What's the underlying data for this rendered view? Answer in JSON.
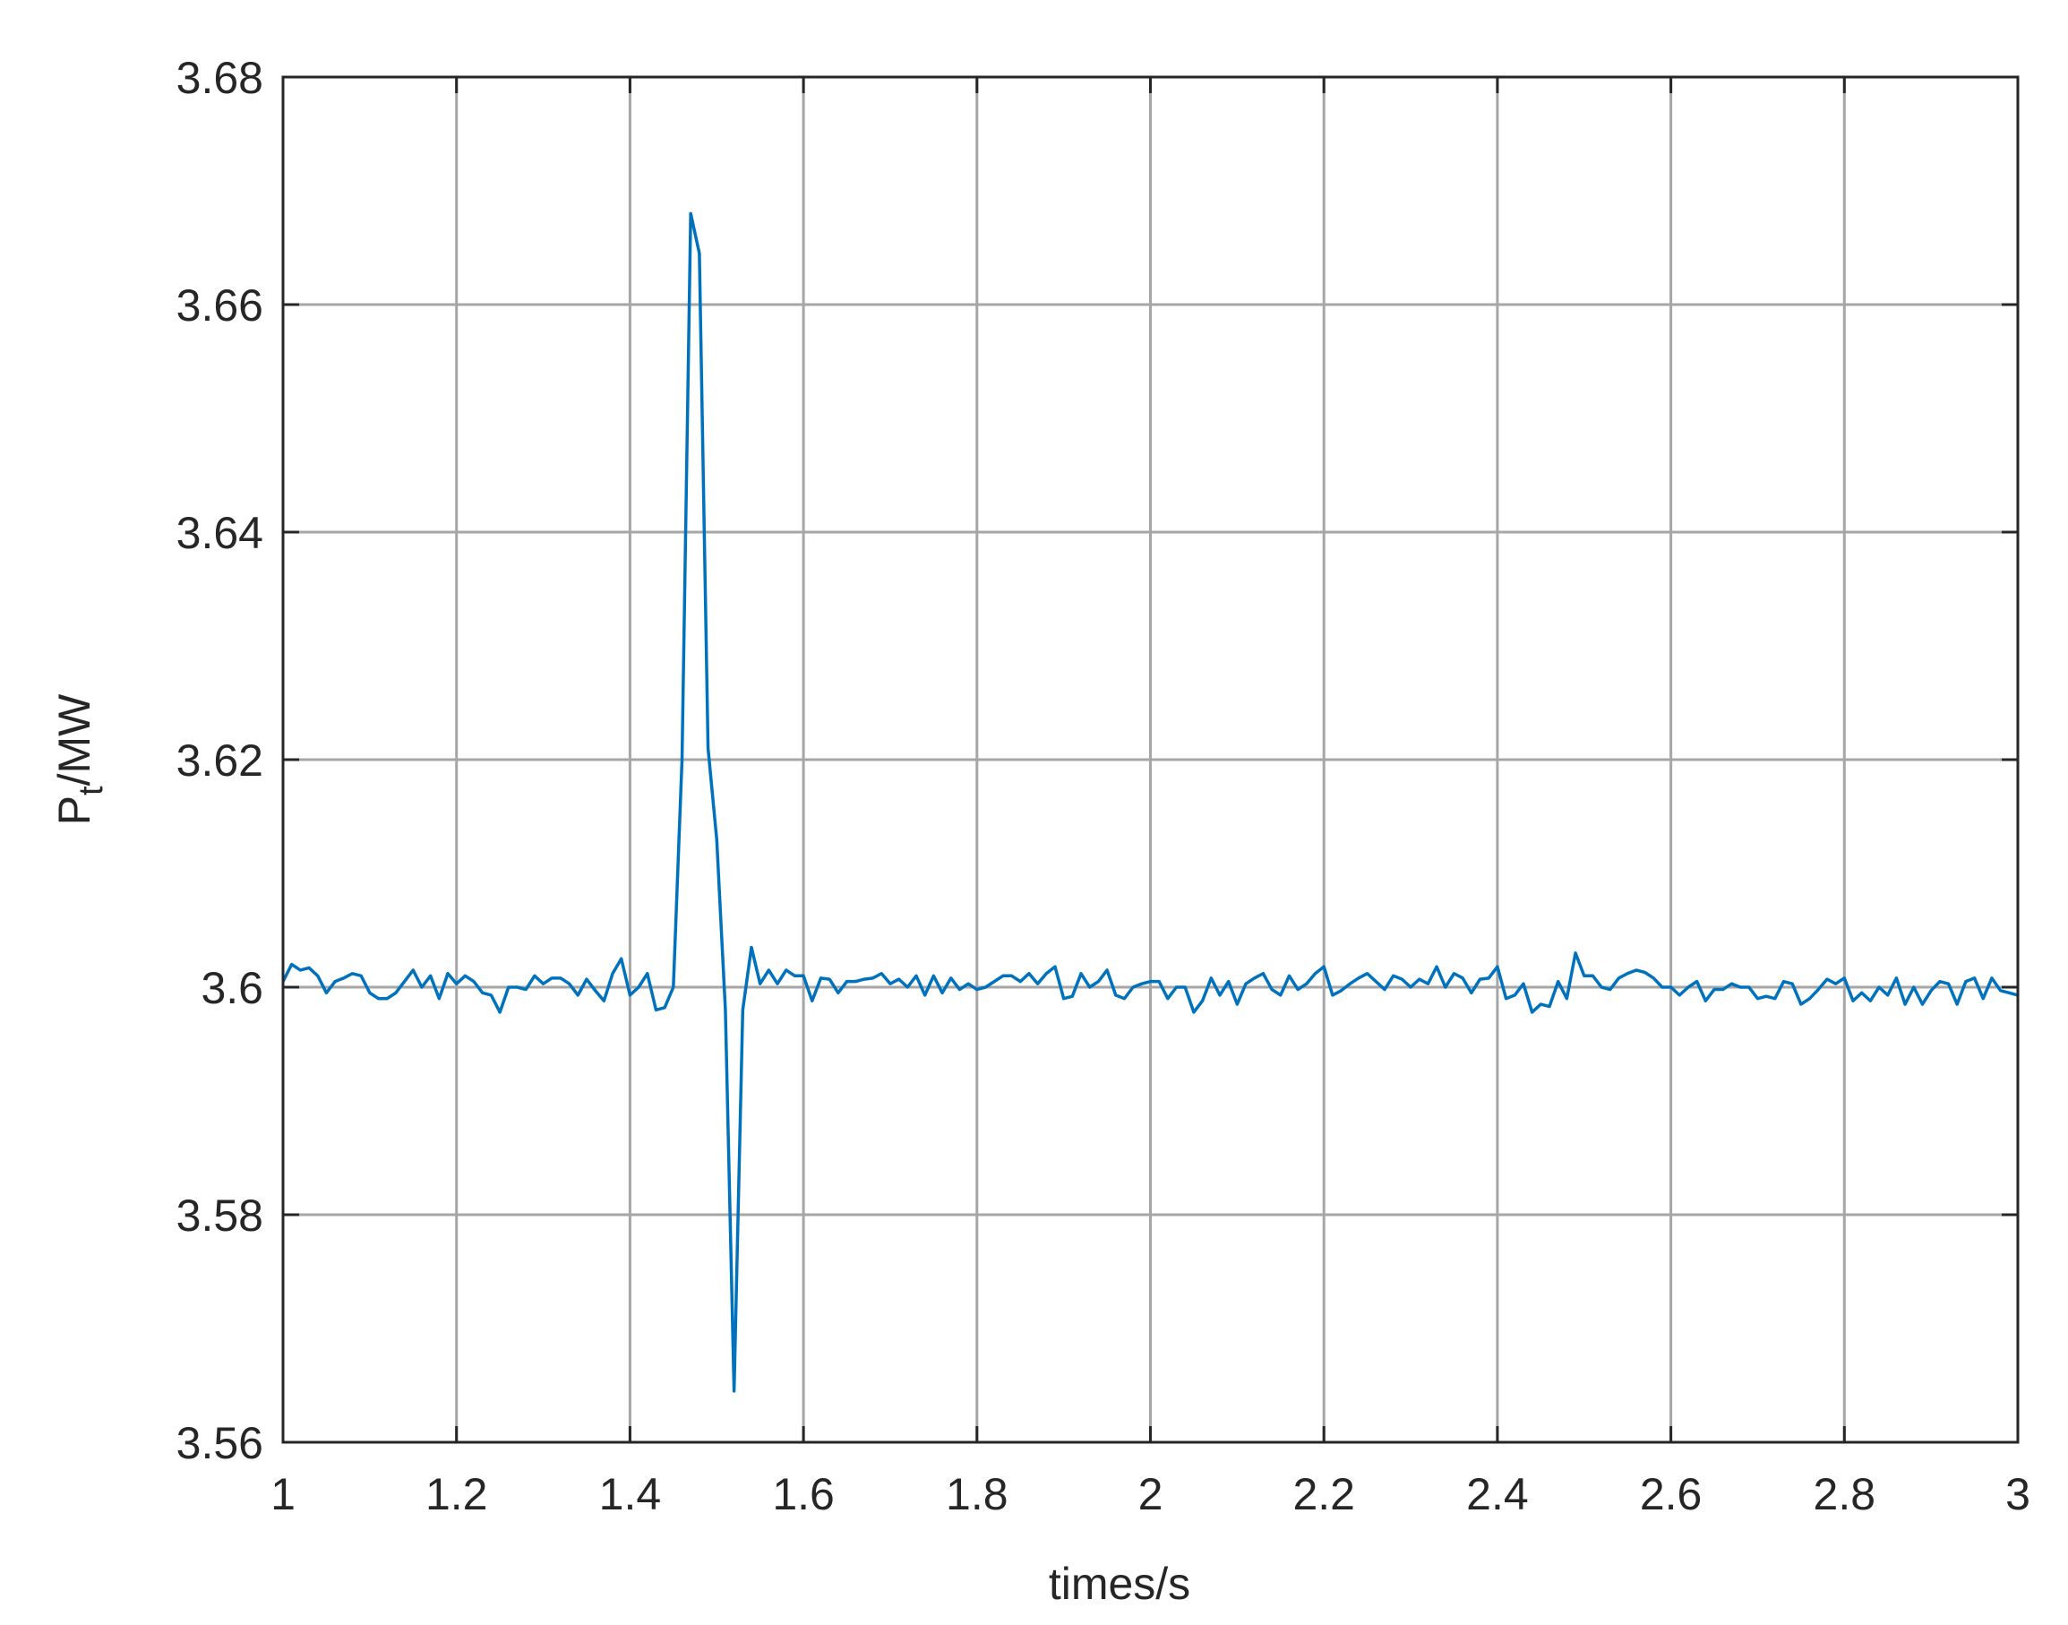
{
  "chart_data": {
    "type": "line",
    "xlabel": "times/s",
    "ylabel": [
      "P",
      "t",
      "/MW"
    ],
    "x": [
      1,
      1.01,
      1.02,
      1.03,
      1.04,
      1.05,
      1.06,
      1.07,
      1.08,
      1.09,
      1.1,
      1.11,
      1.12,
      1.13,
      1.14,
      1.15,
      1.16,
      1.17,
      1.18,
      1.19,
      1.2,
      1.21,
      1.22,
      1.23,
      1.24,
      1.25,
      1.26,
      1.27,
      1.28,
      1.29,
      1.3,
      1.31,
      1.32,
      1.33,
      1.34,
      1.35,
      1.36,
      1.37,
      1.38,
      1.39,
      1.4,
      1.41,
      1.42,
      1.43,
      1.44,
      1.45,
      1.46,
      1.47,
      1.48,
      1.49,
      1.5,
      1.51,
      1.52,
      1.53,
      1.54,
      1.55,
      1.56,
      1.57,
      1.58,
      1.59,
      1.6,
      1.61,
      1.62,
      1.63,
      1.64,
      1.65,
      1.66,
      1.67,
      1.68,
      1.69,
      1.7,
      1.71,
      1.72,
      1.73,
      1.74,
      1.75,
      1.76,
      1.77,
      1.78,
      1.79,
      1.8,
      1.81,
      1.82,
      1.83,
      1.84,
      1.85,
      1.86,
      1.87,
      1.88,
      1.89,
      1.9,
      1.91,
      1.92,
      1.93,
      1.94,
      1.95,
      1.96,
      1.97,
      1.98,
      1.99,
      2,
      2.01,
      2.02,
      2.03,
      2.04,
      2.05,
      2.06,
      2.07,
      2.08,
      2.09,
      2.1,
      2.11,
      2.12,
      2.13,
      2.14,
      2.15,
      2.16,
      2.17,
      2.18,
      2.19,
      2.2,
      2.21,
      2.22,
      2.23,
      2.24,
      2.25,
      2.26,
      2.27,
      2.28,
      2.29,
      2.3,
      2.31,
      2.32,
      2.33,
      2.34,
      2.35,
      2.36,
      2.37,
      2.38,
      2.39,
      2.4,
      2.41,
      2.42,
      2.43,
      2.44,
      2.45,
      2.46,
      2.47,
      2.48,
      2.49,
      2.5,
      2.51,
      2.52,
      2.53,
      2.54,
      2.55,
      2.56,
      2.57,
      2.58,
      2.59,
      2.6,
      2.61,
      2.62,
      2.63,
      2.64,
      2.65,
      2.66,
      2.67,
      2.68,
      2.69,
      2.7,
      2.71,
      2.72,
      2.73,
      2.74,
      2.75,
      2.76,
      2.77,
      2.78,
      2.79,
      2.8,
      2.81,
      2.82,
      2.83,
      2.84,
      2.85,
      2.86,
      2.87,
      2.88,
      2.89,
      2.9,
      2.91,
      2.92,
      2.93,
      2.94,
      2.95,
      2.96,
      2.97,
      2.98,
      2.99,
      3
    ],
    "series": [
      {
        "color": "#0072bd",
        "values": [
          3.6005,
          3.602,
          3.6015,
          3.6017,
          3.601,
          3.5995,
          3.6005,
          3.6008,
          3.6012,
          3.601,
          3.5995,
          3.599,
          3.599,
          3.5995,
          3.6005,
          3.6015,
          3.6,
          3.601,
          3.599,
          3.6012,
          3.6003,
          3.601,
          3.6005,
          3.5995,
          3.5993,
          3.5978,
          3.6,
          3.6,
          3.5998,
          3.601,
          3.6003,
          3.6008,
          3.6008,
          3.6003,
          3.5993,
          3.6007,
          3.5997,
          3.5988,
          3.6012,
          3.6025,
          3.5993,
          3.6,
          3.6012,
          3.598,
          3.5982,
          3.6,
          3.62,
          3.668,
          3.6645,
          3.621,
          3.613,
          3.598,
          3.5645,
          3.598,
          3.6035,
          3.6003,
          3.6015,
          3.6003,
          3.6015,
          3.601,
          3.601,
          3.5988,
          3.6008,
          3.6007,
          3.5995,
          3.6005,
          3.6005,
          3.6007,
          3.6008,
          3.6012,
          3.6003,
          3.6007,
          3.6,
          3.601,
          3.5993,
          3.601,
          3.5995,
          3.6008,
          3.5998,
          3.6003,
          3.5998,
          3.6,
          3.6005,
          3.601,
          3.601,
          3.6005,
          3.6012,
          3.6003,
          3.6012,
          3.6018,
          3.599,
          3.5992,
          3.6012,
          3.6,
          3.6005,
          3.6015,
          3.5993,
          3.599,
          3.6,
          3.6003,
          3.6005,
          3.6005,
          3.599,
          3.6,
          3.6,
          3.5978,
          3.5988,
          3.6008,
          3.5993,
          3.6005,
          3.5985,
          3.6003,
          3.6008,
          3.6012,
          3.5998,
          3.5993,
          3.601,
          3.5998,
          3.6003,
          3.6012,
          3.6018,
          3.5993,
          3.5997,
          3.6003,
          3.6008,
          3.6012,
          3.6005,
          3.5998,
          3.601,
          3.6007,
          3.6,
          3.6007,
          3.6003,
          3.6018,
          3.6,
          3.6012,
          3.6008,
          3.5995,
          3.6007,
          3.6008,
          3.6018,
          3.599,
          3.5993,
          3.6003,
          3.5978,
          3.5985,
          3.5983,
          3.6005,
          3.599,
          3.603,
          3.601,
          3.601,
          3.6,
          3.5998,
          3.6008,
          3.6012,
          3.6015,
          3.6013,
          3.6008,
          3.6,
          3.6,
          3.5993,
          3.6,
          3.6005,
          3.5988,
          3.5998,
          3.5998,
          3.6003,
          3.6,
          3.6,
          3.599,
          3.5992,
          3.599,
          3.6005,
          3.6003,
          3.5985,
          3.599,
          3.5998,
          3.6007,
          3.6003,
          3.6008,
          3.5988,
          3.5995,
          3.5988,
          3.6,
          3.5993,
          3.6008,
          3.5985,
          3.6,
          3.5985,
          3.5997,
          3.6005,
          3.6003,
          3.5985,
          3.6005,
          3.6008,
          3.599,
          3.6008,
          3.5997,
          3.5995,
          3.5993
        ]
      }
    ],
    "xlim": [
      1,
      3
    ],
    "xticks": [
      1,
      1.2,
      1.4,
      1.6,
      1.8,
      2,
      2.2,
      2.4,
      2.6,
      2.8,
      3
    ],
    "ylim": [
      3.56,
      3.68
    ],
    "yticks": [
      3.56,
      3.58,
      3.6,
      3.62,
      3.64,
      3.66,
      3.68
    ],
    "grid": true
  }
}
